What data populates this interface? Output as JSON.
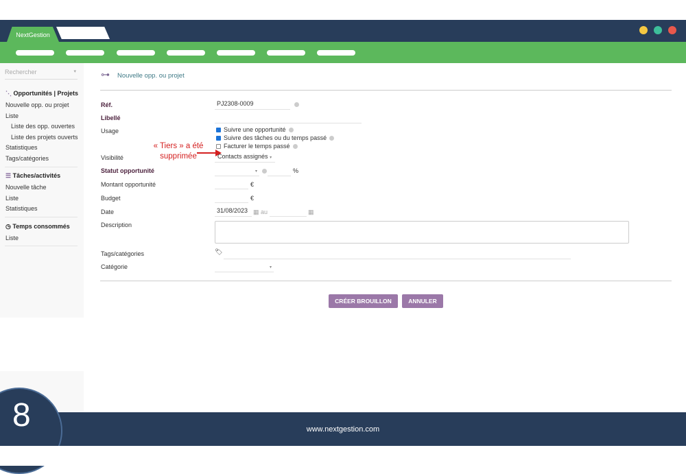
{
  "app": {
    "tab_label": "NextGestion",
    "window_controls": {
      "colors": [
        "#f4c842",
        "#3dbf9a",
        "#e8584c"
      ]
    }
  },
  "colors": {
    "header": "#283d5a",
    "nav": "#5cb85c",
    "button": "#9b78a8",
    "annotation": "#d42020"
  },
  "sidebar": {
    "search_placeholder": "Rechercher",
    "sections": [
      {
        "title": "Opportunités | Projets",
        "icon": "project-icon",
        "items": [
          "Nouvelle opp. ou projet",
          "Liste",
          "Liste des opp. ouvertes",
          "Liste des projets ouverts",
          "Statistiques",
          "Tags/catégories"
        ]
      },
      {
        "title": "Tâches/activités",
        "icon": "tasks-icon",
        "items": [
          "Nouvelle tâche",
          "Liste",
          "Statistiques"
        ]
      },
      {
        "title": "Temps consommés",
        "icon": "clock-icon",
        "items": [
          "Liste"
        ]
      }
    ]
  },
  "page": {
    "title": "Nouvelle opp. ou projet"
  },
  "form": {
    "ref_label": "Réf.",
    "ref_value": "PJ2308-0009",
    "libelle_label": "Libellé",
    "usage_label": "Usage",
    "usage_options": [
      {
        "label": "Suivre une opportunité",
        "checked": true
      },
      {
        "label": "Suivre des tâches ou du temps passé",
        "checked": true
      },
      {
        "label": "Facturer le temps passé",
        "checked": false
      }
    ],
    "visibilite_label": "Visibilité",
    "visibilite_value": "Contacts assignés",
    "statut_label": "Statut opportunité",
    "percent_unit": "%",
    "montant_label": "Montant opportunité",
    "currency": "€",
    "budget_label": "Budget",
    "date_label": "Date",
    "date_start": "31/08/2023",
    "date_to": "au",
    "description_label": "Description",
    "tags_label": "Tags/catégories",
    "categorie_label": "Catégorie",
    "create_button": "CRÉER BROUILLON",
    "cancel_button": "ANNULER"
  },
  "annotation": {
    "line1": "« Tiers » a été",
    "line2": "supprimée"
  },
  "footer": {
    "url": "www.nextgestion.com",
    "step": "8"
  }
}
